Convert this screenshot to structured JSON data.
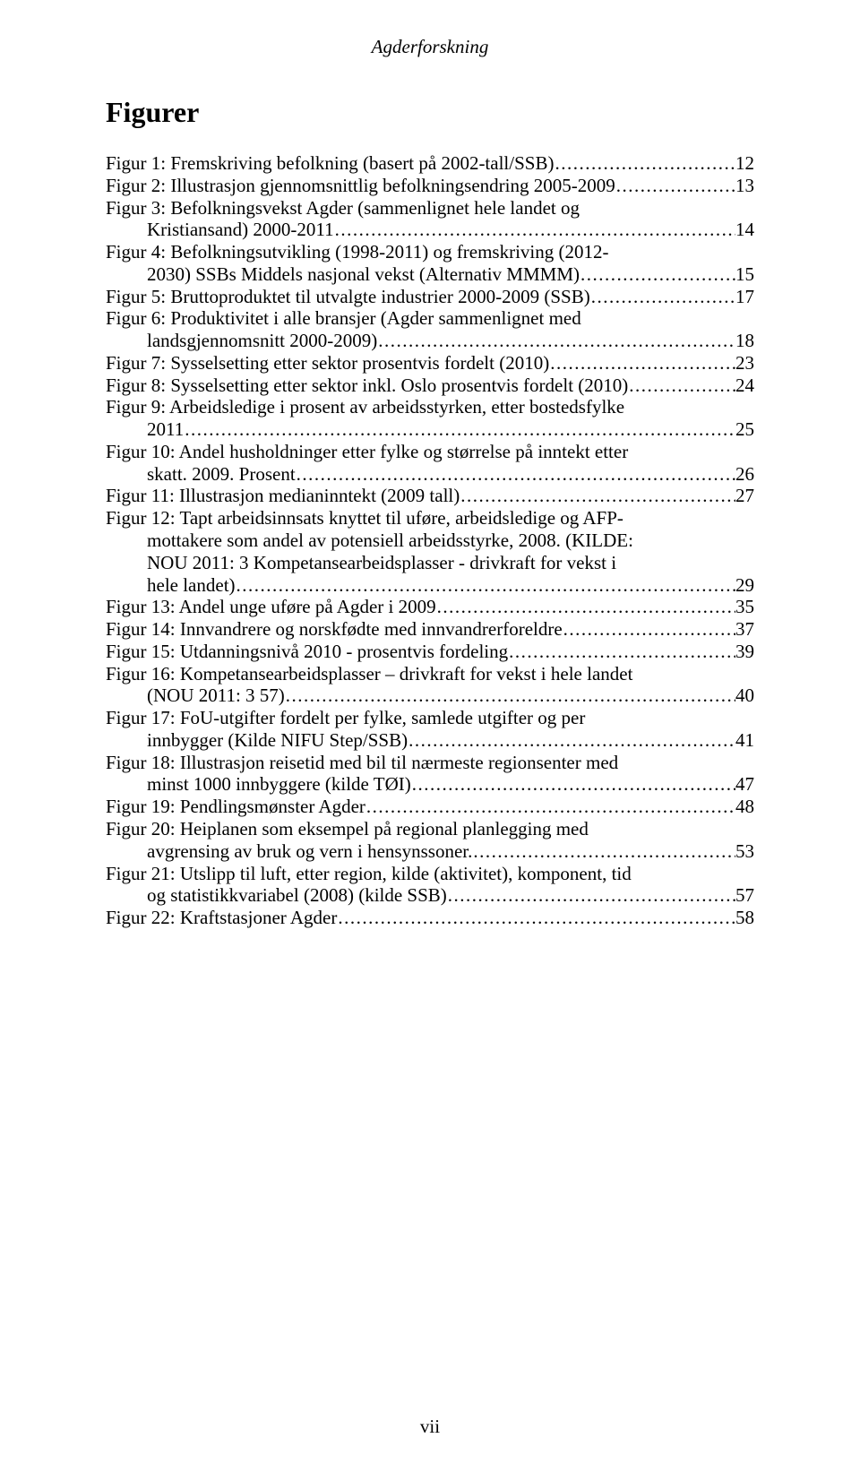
{
  "running_header": "Agderforskning",
  "section_title": "Figurer",
  "page_number": "vii",
  "entries": [
    {
      "lines": [
        "Figur 1: Fremskriving befolkning (basert på 2002-tall/SSB)"
      ],
      "page": "12"
    },
    {
      "lines": [
        "Figur 2: Illustrasjon gjennomsnittlig befolkningsendring 2005-2009"
      ],
      "page": "13"
    },
    {
      "lines": [
        "Figur 3: Befolkningsvekst Agder (sammenlignet hele landet og",
        "Kristiansand) 2000-2011"
      ],
      "page": "14"
    },
    {
      "lines": [
        "Figur 4: Befolkningsutvikling (1998-2011) og fremskriving (2012-",
        "2030) SSBs Middels nasjonal vekst (Alternativ MMMM)"
      ],
      "page": "15"
    },
    {
      "lines": [
        "Figur 5: Bruttoproduktet til utvalgte industrier 2000-2009 (SSB)"
      ],
      "page": "17"
    },
    {
      "lines": [
        "Figur 6: Produktivitet i alle bransjer (Agder sammenlignet med",
        "landsgjennomsnitt 2000-2009)"
      ],
      "page": "18"
    },
    {
      "lines": [
        "Figur 7: Sysselsetting etter sektor prosentvis fordelt (2010)"
      ],
      "page": "23"
    },
    {
      "lines": [
        "Figur 8: Sysselsetting etter sektor inkl. Oslo prosentvis fordelt (2010)"
      ],
      "page": "24"
    },
    {
      "lines": [
        "Figur 9: Arbeidsledige i prosent av arbeidsstyrken, etter bostedsfylke",
        "2011"
      ],
      "page": "25"
    },
    {
      "lines": [
        "Figur 10: Andel husholdninger etter fylke og størrelse på inntekt etter",
        "skatt. 2009. Prosent"
      ],
      "page": "26"
    },
    {
      "lines": [
        "Figur 11: Illustrasjon medianinntekt (2009 tall)"
      ],
      "page": "27"
    },
    {
      "lines": [
        "Figur 12: Tapt arbeidsinnsats knyttet til uføre, arbeidsledige og AFP-",
        "mottakere som andel av potensiell arbeidsstyrke, 2008. (KILDE:",
        "NOU 2011: 3 Kompetansearbeidsplasser - drivkraft for vekst i",
        "hele landet)"
      ],
      "page": "29"
    },
    {
      "lines": [
        "Figur 13: Andel unge uføre på Agder i 2009"
      ],
      "page": "35"
    },
    {
      "lines": [
        "Figur 14: Innvandrere og norskfødte med innvandrerforeldre"
      ],
      "page": "37"
    },
    {
      "lines": [
        "Figur 15: Utdanningsnivå 2010 - prosentvis fordeling"
      ],
      "page": "39"
    },
    {
      "lines": [
        "Figur 16: Kompetansearbeidsplasser – drivkraft for vekst i hele landet",
        "(NOU 2011: 3 57)"
      ],
      "page": "40"
    },
    {
      "lines": [
        "Figur 17: FoU-utgifter fordelt per fylke, samlede utgifter og per",
        "innbygger (Kilde NIFU Step/SSB)"
      ],
      "page": "41"
    },
    {
      "lines": [
        "Figur 18: Illustrasjon reisetid med bil til nærmeste regionsenter med",
        "minst 1000 innbyggere (kilde TØI)"
      ],
      "page": "47"
    },
    {
      "lines": [
        "Figur 19: Pendlingsmønster Agder"
      ],
      "page": "48"
    },
    {
      "lines": [
        "Figur 20: Heiplanen som eksempel på regional planlegging med",
        "avgrensing av bruk og vern i hensynssoner."
      ],
      "page": "53"
    },
    {
      "lines": [
        "Figur 21: Utslipp til luft, etter region, kilde (aktivitet), komponent, tid",
        "og statistikkvariabel (2008) (kilde SSB)"
      ],
      "page": "57"
    },
    {
      "lines": [
        "Figur 22: Kraftstasjoner Agder"
      ],
      "page": "58"
    }
  ]
}
